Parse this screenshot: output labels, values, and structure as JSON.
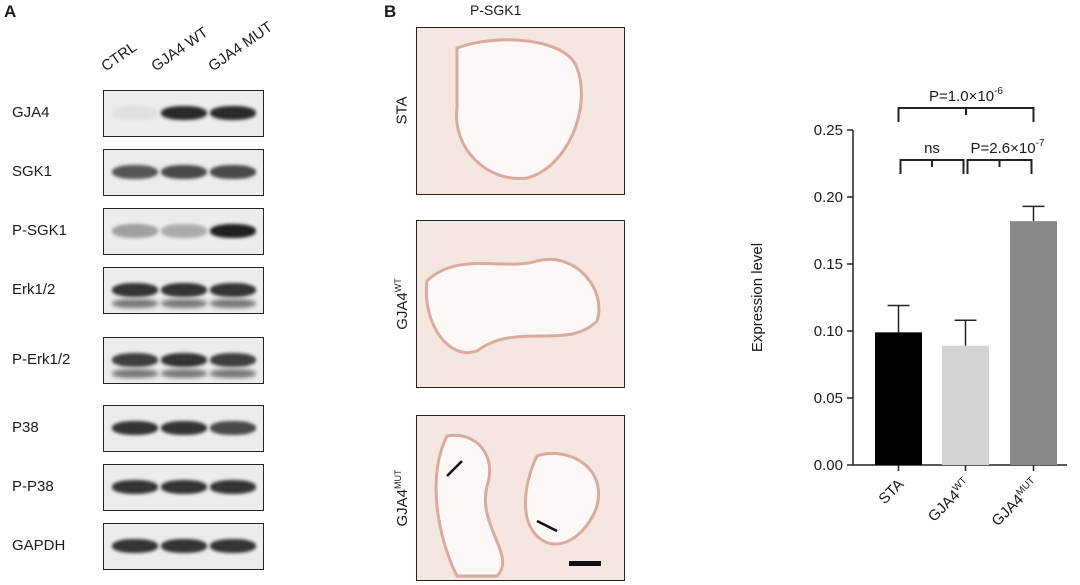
{
  "panel_a": {
    "letter": "A",
    "lanes": [
      "CTRL",
      "GJA4 WT",
      "GJA4 MUT"
    ],
    "blots": [
      {
        "name": "GJA4",
        "intensities": [
          0.05,
          0.9,
          0.9
        ]
      },
      {
        "name": "SGK1",
        "intensities": [
          0.7,
          0.75,
          0.75
        ]
      },
      {
        "name": "P-SGK1",
        "intensities": [
          0.35,
          0.3,
          0.95
        ]
      },
      {
        "name": "Erk1/2",
        "intensities": [
          0.85,
          0.85,
          0.85
        ]
      },
      {
        "name": "P-Erk1/2",
        "intensities": [
          0.8,
          0.85,
          0.8
        ]
      },
      {
        "name": "P38",
        "intensities": [
          0.85,
          0.85,
          0.75
        ]
      },
      {
        "name": "P-P38",
        "intensities": [
          0.85,
          0.85,
          0.85
        ]
      },
      {
        "name": "GAPDH",
        "intensities": [
          0.85,
          0.85,
          0.85
        ]
      }
    ]
  },
  "panel_b": {
    "letter": "B",
    "title": "P-SGK1",
    "rows": [
      {
        "label": "STA",
        "sup": ""
      },
      {
        "label": "GJA4",
        "sup": "WT"
      },
      {
        "label": "GJA4",
        "sup": "MUT"
      }
    ]
  },
  "chart_data": {
    "type": "bar",
    "categories": [
      "STA",
      "GJA4WT",
      "GJA4MUT"
    ],
    "category_labels": [
      {
        "base": "STA",
        "sup": ""
      },
      {
        "base": "GJA4",
        "sup": "WT"
      },
      {
        "base": "GJA4",
        "sup": "MUT"
      }
    ],
    "values": [
      0.099,
      0.089,
      0.182
    ],
    "errors": [
      0.02,
      0.019,
      0.011
    ],
    "colors": [
      "#000000",
      "#d3d3d3",
      "#8a8a8a"
    ],
    "ylabel": "Expression level",
    "ylim": [
      0,
      0.25
    ],
    "yticks": [
      "0.00",
      "0.05",
      "0.10",
      "0.15",
      "0.20",
      "0.25"
    ],
    "comparisons": [
      {
        "pair": [
          0,
          1
        ],
        "text": "ns",
        "sup": ""
      },
      {
        "pair": [
          1,
          2
        ],
        "text": "P=2.6×10",
        "sup": "-7"
      },
      {
        "pair": [
          0,
          2
        ],
        "text": "P=1.0×10",
        "sup": "-6"
      }
    ]
  }
}
